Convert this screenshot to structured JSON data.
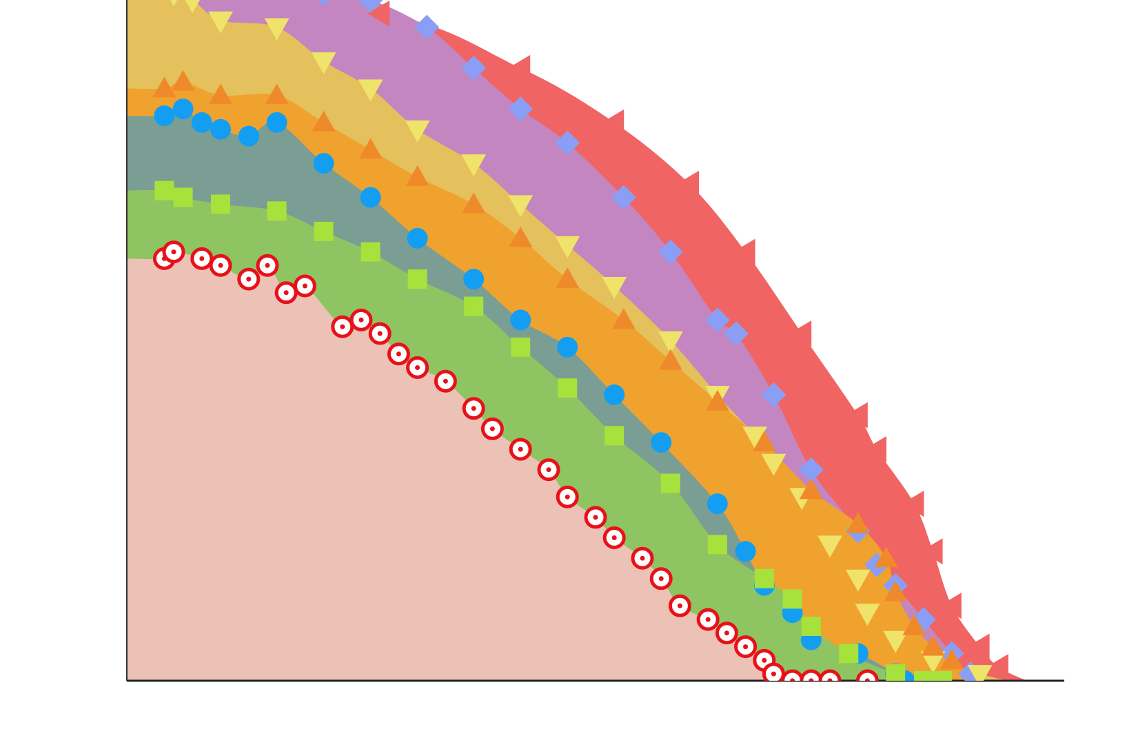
{
  "chart_data": {
    "type": "area",
    "title": "",
    "xlabel": "",
    "ylabel": "",
    "xlim": [
      0,
      1
    ],
    "ylim": [
      0,
      1
    ],
    "grid": false,
    "legend": "none",
    "series": [
      {
        "marker": "triangle-left",
        "color": "#f06464",
        "fill": "#f06464",
        "points": [
          [
            0.27,
            0.98
          ],
          [
            0.42,
            0.9
          ],
          [
            0.52,
            0.82
          ],
          [
            0.6,
            0.73
          ],
          [
            0.66,
            0.63
          ],
          [
            0.72,
            0.51
          ],
          [
            0.78,
            0.39
          ],
          [
            0.8,
            0.34
          ],
          [
            0.84,
            0.26
          ],
          [
            0.86,
            0.19
          ],
          [
            0.88,
            0.11
          ],
          [
            0.91,
            0.05
          ],
          [
            0.93,
            0.02
          ]
        ]
      },
      {
        "marker": "diamond",
        "color": "#8a9ef5",
        "fill": "#c386c0",
        "points": [
          [
            0.13,
            1.02
          ],
          [
            0.21,
            1.01
          ],
          [
            0.26,
            1.0
          ],
          [
            0.32,
            0.96
          ],
          [
            0.37,
            0.9
          ],
          [
            0.42,
            0.84
          ],
          [
            0.47,
            0.79
          ],
          [
            0.53,
            0.71
          ],
          [
            0.58,
            0.63
          ],
          [
            0.63,
            0.53
          ],
          [
            0.65,
            0.51
          ],
          [
            0.69,
            0.42
          ],
          [
            0.73,
            0.31
          ],
          [
            0.78,
            0.22
          ],
          [
            0.8,
            0.17
          ],
          [
            0.82,
            0.14
          ],
          [
            0.85,
            0.09
          ],
          [
            0.88,
            0.04
          ],
          [
            0.9,
            0.01
          ]
        ]
      },
      {
        "marker": "triangle-down",
        "color": "#f0e36a",
        "fill": "#e4c15c",
        "points": [
          [
            0.05,
            1.01
          ],
          [
            0.07,
            1.0
          ],
          [
            0.1,
            0.97
          ],
          [
            0.16,
            0.96
          ],
          [
            0.21,
            0.91
          ],
          [
            0.26,
            0.87
          ],
          [
            0.31,
            0.81
          ],
          [
            0.37,
            0.76
          ],
          [
            0.42,
            0.7
          ],
          [
            0.47,
            0.64
          ],
          [
            0.52,
            0.58
          ],
          [
            0.58,
            0.5
          ],
          [
            0.63,
            0.42
          ],
          [
            0.67,
            0.36
          ],
          [
            0.69,
            0.32
          ],
          [
            0.72,
            0.27
          ],
          [
            0.75,
            0.2
          ],
          [
            0.78,
            0.15
          ],
          [
            0.79,
            0.1
          ],
          [
            0.82,
            0.06
          ],
          [
            0.86,
            0.03
          ],
          [
            0.91,
            0.01
          ]
        ]
      },
      {
        "marker": "triangle-up",
        "color": "#ef8a2a",
        "fill": "#f0a22e",
        "points": [
          [
            0.04,
            0.87
          ],
          [
            0.06,
            0.88
          ],
          [
            0.1,
            0.86
          ],
          [
            0.16,
            0.86
          ],
          [
            0.21,
            0.82
          ],
          [
            0.26,
            0.78
          ],
          [
            0.31,
            0.74
          ],
          [
            0.37,
            0.7
          ],
          [
            0.42,
            0.65
          ],
          [
            0.47,
            0.59
          ],
          [
            0.53,
            0.53
          ],
          [
            0.58,
            0.47
          ],
          [
            0.63,
            0.41
          ],
          [
            0.68,
            0.35
          ],
          [
            0.73,
            0.28
          ],
          [
            0.78,
            0.23
          ],
          [
            0.81,
            0.18
          ],
          [
            0.82,
            0.13
          ],
          [
            0.84,
            0.08
          ],
          [
            0.86,
            0.05
          ],
          [
            0.88,
            0.03
          ]
        ]
      },
      {
        "marker": "circle",
        "color": "#139ef2",
        "fill": "#7a9e94",
        "points": [
          [
            0.04,
            0.83
          ],
          [
            0.06,
            0.84
          ],
          [
            0.08,
            0.82
          ],
          [
            0.1,
            0.81
          ],
          [
            0.13,
            0.8
          ],
          [
            0.16,
            0.82
          ],
          [
            0.21,
            0.76
          ],
          [
            0.26,
            0.71
          ],
          [
            0.31,
            0.65
          ],
          [
            0.37,
            0.59
          ],
          [
            0.42,
            0.53
          ],
          [
            0.47,
            0.49
          ],
          [
            0.52,
            0.42
          ],
          [
            0.57,
            0.35
          ],
          [
            0.63,
            0.26
          ],
          [
            0.66,
            0.19
          ],
          [
            0.68,
            0.14
          ],
          [
            0.71,
            0.1
          ],
          [
            0.73,
            0.06
          ],
          [
            0.78,
            0.04
          ],
          [
            0.82,
            0.01
          ],
          [
            0.83,
            0.0
          ]
        ]
      },
      {
        "marker": "square",
        "color": "#a6e23b",
        "fill": "#8fc463",
        "points": [
          [
            0.04,
            0.72
          ],
          [
            0.06,
            0.71
          ],
          [
            0.1,
            0.7
          ],
          [
            0.16,
            0.69
          ],
          [
            0.21,
            0.66
          ],
          [
            0.26,
            0.63
          ],
          [
            0.31,
            0.59
          ],
          [
            0.37,
            0.55
          ],
          [
            0.42,
            0.49
          ],
          [
            0.47,
            0.43
          ],
          [
            0.52,
            0.36
          ],
          [
            0.58,
            0.29
          ],
          [
            0.63,
            0.2
          ],
          [
            0.68,
            0.15
          ],
          [
            0.71,
            0.12
          ],
          [
            0.73,
            0.08
          ],
          [
            0.77,
            0.04
          ],
          [
            0.82,
            0.01
          ],
          [
            0.85,
            0.0
          ],
          [
            0.87,
            0.0
          ]
        ]
      },
      {
        "marker": "target",
        "color": "#e8111a",
        "fill": "#ecc2b6",
        "points": [
          [
            0.04,
            0.62
          ],
          [
            0.05,
            0.63
          ],
          [
            0.08,
            0.62
          ],
          [
            0.1,
            0.61
          ],
          [
            0.13,
            0.59
          ],
          [
            0.15,
            0.61
          ],
          [
            0.17,
            0.57
          ],
          [
            0.19,
            0.58
          ],
          [
            0.23,
            0.52
          ],
          [
            0.25,
            0.53
          ],
          [
            0.27,
            0.51
          ],
          [
            0.29,
            0.48
          ],
          [
            0.31,
            0.46
          ],
          [
            0.34,
            0.44
          ],
          [
            0.37,
            0.4
          ],
          [
            0.39,
            0.37
          ],
          [
            0.42,
            0.34
          ],
          [
            0.45,
            0.31
          ],
          [
            0.47,
            0.27
          ],
          [
            0.5,
            0.24
          ],
          [
            0.52,
            0.21
          ],
          [
            0.55,
            0.18
          ],
          [
            0.57,
            0.15
          ],
          [
            0.59,
            0.11
          ],
          [
            0.62,
            0.09
          ],
          [
            0.64,
            0.07
          ],
          [
            0.66,
            0.05
          ],
          [
            0.68,
            0.03
          ],
          [
            0.69,
            0.01
          ],
          [
            0.71,
            0.0
          ],
          [
            0.73,
            0.0
          ],
          [
            0.75,
            0.0
          ],
          [
            0.79,
            0.0
          ]
        ]
      }
    ]
  }
}
